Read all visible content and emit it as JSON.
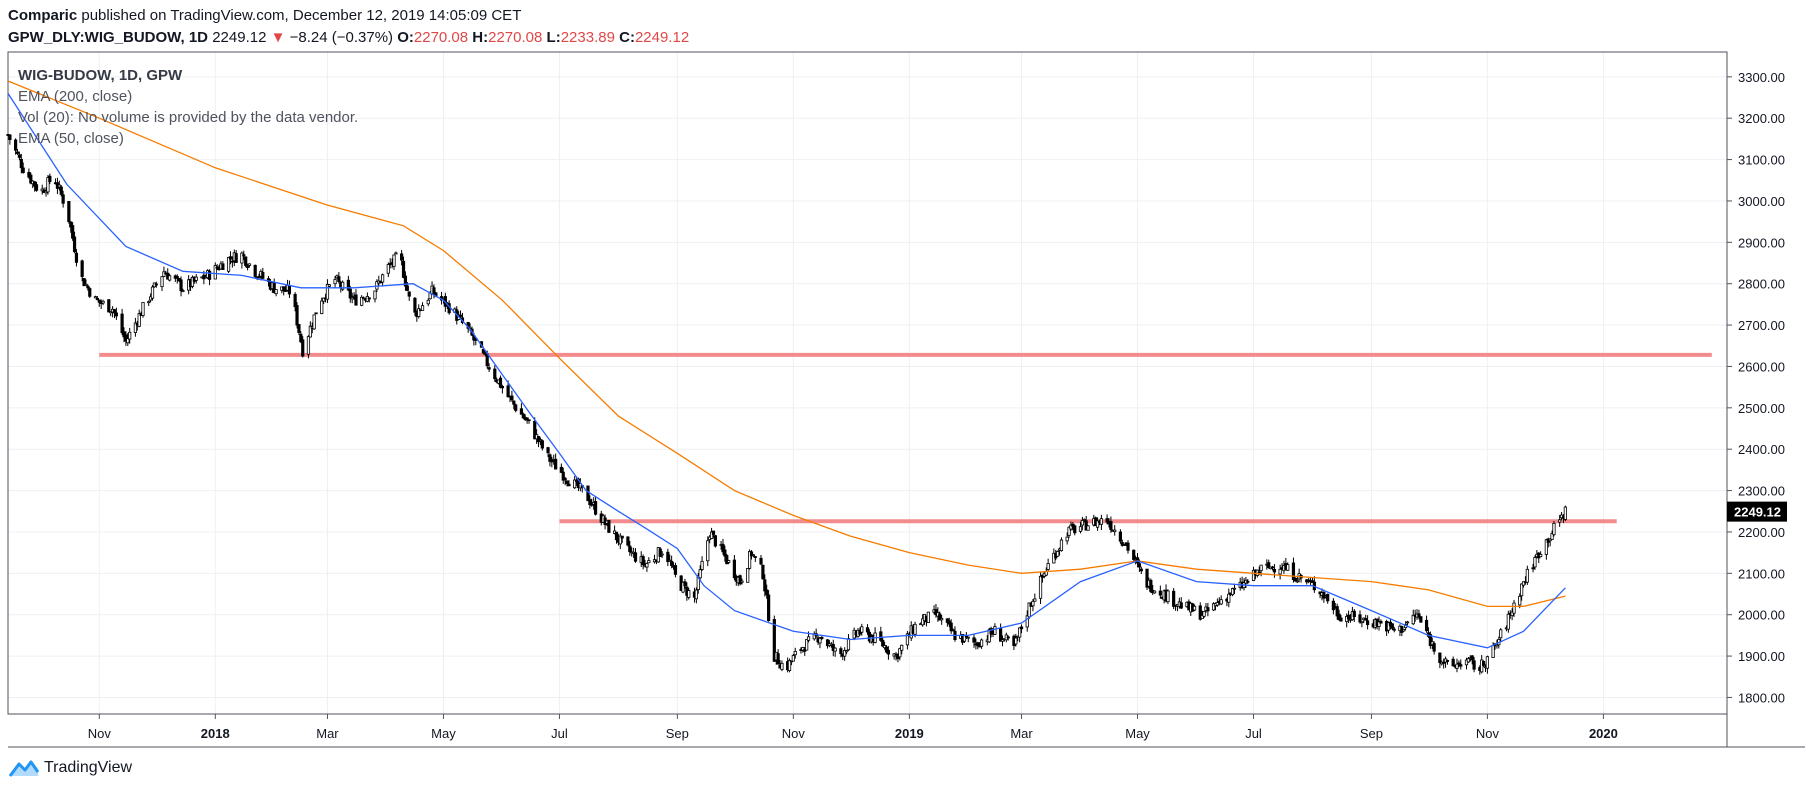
{
  "header": {
    "author": "Comparic",
    "published": "published on TradingView.com, December 12, 2019 14:05:09 CET",
    "symbol": "GPW_DLY:WIG_BUDOW, 1D",
    "last": "2249.12",
    "change_arrow": "▼",
    "change": "−8.24 (−0.37%)",
    "open_label": "O:",
    "open": "2270.08",
    "high_label": "H:",
    "high": "2270.08",
    "low_label": "L:",
    "low": "2233.89",
    "close_label": "C:",
    "close": "2249.12"
  },
  "legend": [
    "WIG-BUDOW, 1D, GPW",
    "EMA (200, close)",
    "Vol (20): No volume is provided by the data vendor.",
    "EMA (50, close)"
  ],
  "brand": {
    "name": "TradingView"
  },
  "colors": {
    "candle": "#000000",
    "ema200": "#f57c00",
    "ema50": "#2962ff",
    "level": "#f28b8b",
    "grid": "#eef0f3",
    "price_tag": "#000000"
  },
  "chart_data": {
    "type": "candlestick",
    "title": "WIG-BUDOW, 1D, GPW",
    "x_range": [
      "2017-09-14",
      "2020-03-06"
    ],
    "ylim": [
      1760,
      3360
    ],
    "y_ticks": [
      "3300.00",
      "3200.00",
      "3100.00",
      "3000.00",
      "2900.00",
      "2800.00",
      "2700.00",
      "2600.00",
      "2500.00",
      "2400.00",
      "2300.00",
      "2200.00",
      "2100.00",
      "2000.00",
      "1900.00",
      "1800.00"
    ],
    "x_ticks": [
      {
        "label": "Nov",
        "date": "2017-11-01"
      },
      {
        "label": "2018",
        "date": "2018-01-01"
      },
      {
        "label": "Mar",
        "date": "2018-03-01"
      },
      {
        "label": "May",
        "date": "2018-05-01"
      },
      {
        "label": "Jul",
        "date": "2018-07-01"
      },
      {
        "label": "Sep",
        "date": "2018-09-01"
      },
      {
        "label": "Nov",
        "date": "2018-11-01"
      },
      {
        "label": "2019",
        "date": "2019-01-01"
      },
      {
        "label": "Mar",
        "date": "2019-03-01"
      },
      {
        "label": "May",
        "date": "2019-05-01"
      },
      {
        "label": "Jul",
        "date": "2019-07-01"
      },
      {
        "label": "Sep",
        "date": "2019-09-01"
      },
      {
        "label": "Nov",
        "date": "2019-11-01"
      },
      {
        "label": "2020",
        "date": "2020-01-01"
      }
    ],
    "price_tag": {
      "label": "2249.12",
      "value": 2249.12
    },
    "levels": [
      {
        "value": 2628,
        "from": "2017-11-01",
        "to": "2020-02-27"
      },
      {
        "value": 2226,
        "from": "2018-07-01",
        "to": "2020-01-08"
      }
    ],
    "price_path": [
      [
        "2017-09-14",
        3160
      ],
      [
        "2017-09-22",
        3080
      ],
      [
        "2017-10-01",
        3020
      ],
      [
        "2017-10-08",
        3060
      ],
      [
        "2017-10-15",
        2980
      ],
      [
        "2017-10-22",
        2820
      ],
      [
        "2017-10-30",
        2760
      ],
      [
        "2017-11-08",
        2740
      ],
      [
        "2017-11-15",
        2660
      ],
      [
        "2017-11-25",
        2750
      ],
      [
        "2017-12-05",
        2830
      ],
      [
        "2017-12-15",
        2790
      ],
      [
        "2017-12-28",
        2820
      ],
      [
        "2018-01-08",
        2860
      ],
      [
        "2018-01-15",
        2870
      ],
      [
        "2018-01-22",
        2830
      ],
      [
        "2018-02-01",
        2790
      ],
      [
        "2018-02-10",
        2780
      ],
      [
        "2018-02-16",
        2640
      ],
      [
        "2018-02-25",
        2760
      ],
      [
        "2018-03-05",
        2810
      ],
      [
        "2018-03-15",
        2760
      ],
      [
        "2018-03-25",
        2780
      ],
      [
        "2018-04-02",
        2840
      ],
      [
        "2018-04-08",
        2870
      ],
      [
        "2018-04-15",
        2720
      ],
      [
        "2018-04-25",
        2780
      ],
      [
        "2018-05-05",
        2740
      ],
      [
        "2018-05-15",
        2680
      ],
      [
        "2018-05-25",
        2600
      ],
      [
        "2018-06-05",
        2520
      ],
      [
        "2018-06-15",
        2460
      ],
      [
        "2018-06-25",
        2380
      ],
      [
        "2018-07-05",
        2330
      ],
      [
        "2018-07-15",
        2290
      ],
      [
        "2018-07-25",
        2220
      ],
      [
        "2018-08-05",
        2160
      ],
      [
        "2018-08-15",
        2120
      ],
      [
        "2018-08-25",
        2160
      ],
      [
        "2018-09-01",
        2080
      ],
      [
        "2018-09-10",
        2040
      ],
      [
        "2018-09-18",
        2200
      ],
      [
        "2018-09-26",
        2140
      ],
      [
        "2018-10-04",
        2080
      ],
      [
        "2018-10-10",
        2150
      ],
      [
        "2018-10-16",
        2100
      ],
      [
        "2018-10-22",
        1900
      ],
      [
        "2018-10-28",
        1870
      ],
      [
        "2018-11-05",
        1920
      ],
      [
        "2018-11-15",
        1950
      ],
      [
        "2018-11-25",
        1900
      ],
      [
        "2018-12-05",
        1960
      ],
      [
        "2018-12-15",
        1940
      ],
      [
        "2018-12-25",
        1900
      ],
      [
        "2019-01-05",
        1980
      ],
      [
        "2019-01-15",
        2000
      ],
      [
        "2019-01-25",
        1950
      ],
      [
        "2019-02-05",
        1930
      ],
      [
        "2019-02-15",
        1960
      ],
      [
        "2019-02-25",
        1920
      ],
      [
        "2019-03-05",
        2020
      ],
      [
        "2019-03-15",
        2120
      ],
      [
        "2019-03-25",
        2200
      ],
      [
        "2019-04-05",
        2220
      ],
      [
        "2019-04-15",
        2230
      ],
      [
        "2019-04-25",
        2170
      ],
      [
        "2019-05-05",
        2080
      ],
      [
        "2019-05-15",
        2050
      ],
      [
        "2019-05-25",
        2020
      ],
      [
        "2019-06-05",
        2000
      ],
      [
        "2019-06-15",
        2040
      ],
      [
        "2019-06-25",
        2070
      ],
      [
        "2019-07-05",
        2110
      ],
      [
        "2019-07-15",
        2120
      ],
      [
        "2019-07-25",
        2090
      ],
      [
        "2019-08-05",
        2060
      ],
      [
        "2019-08-15",
        2000
      ],
      [
        "2019-08-25",
        1990
      ],
      [
        "2019-09-05",
        1980
      ],
      [
        "2019-09-15",
        1960
      ],
      [
        "2019-09-25",
        2000
      ],
      [
        "2019-10-05",
        1910
      ],
      [
        "2019-10-12",
        1870
      ],
      [
        "2019-10-20",
        1890
      ],
      [
        "2019-10-28",
        1870
      ],
      [
        "2019-11-05",
        1920
      ],
      [
        "2019-11-12",
        1990
      ],
      [
        "2019-11-20",
        2080
      ],
      [
        "2019-11-28",
        2150
      ],
      [
        "2019-12-05",
        2200
      ],
      [
        "2019-12-12",
        2250
      ]
    ],
    "series": [
      {
        "name": "EMA (200, close)",
        "points": [
          [
            "2017-09-14",
            3290
          ],
          [
            "2017-11-01",
            3200
          ],
          [
            "2018-01-01",
            3080
          ],
          [
            "2018-03-01",
            2990
          ],
          [
            "2018-04-10",
            2940
          ],
          [
            "2018-05-01",
            2880
          ],
          [
            "2018-06-01",
            2760
          ],
          [
            "2018-07-01",
            2620
          ],
          [
            "2018-08-01",
            2480
          ],
          [
            "2018-09-01",
            2390
          ],
          [
            "2018-10-01",
            2300
          ],
          [
            "2018-11-01",
            2240
          ],
          [
            "2018-12-01",
            2190
          ],
          [
            "2019-01-01",
            2150
          ],
          [
            "2019-02-01",
            2120
          ],
          [
            "2019-03-01",
            2100
          ],
          [
            "2019-04-01",
            2110
          ],
          [
            "2019-05-01",
            2130
          ],
          [
            "2019-06-01",
            2110
          ],
          [
            "2019-07-01",
            2100
          ],
          [
            "2019-08-01",
            2090
          ],
          [
            "2019-09-01",
            2080
          ],
          [
            "2019-10-01",
            2060
          ],
          [
            "2019-11-01",
            2020
          ],
          [
            "2019-11-20",
            2020
          ],
          [
            "2019-12-12",
            2045
          ]
        ]
      },
      {
        "name": "EMA (50, close)",
        "points": [
          [
            "2017-09-14",
            3260
          ],
          [
            "2017-10-15",
            3040
          ],
          [
            "2017-11-15",
            2890
          ],
          [
            "2017-12-15",
            2830
          ],
          [
            "2018-01-15",
            2820
          ],
          [
            "2018-02-15",
            2790
          ],
          [
            "2018-03-15",
            2790
          ],
          [
            "2018-04-15",
            2800
          ],
          [
            "2018-05-01",
            2760
          ],
          [
            "2018-05-15",
            2690
          ],
          [
            "2018-06-01",
            2580
          ],
          [
            "2018-06-15",
            2490
          ],
          [
            "2018-07-01",
            2390
          ],
          [
            "2018-07-15",
            2300
          ],
          [
            "2018-08-01",
            2250
          ],
          [
            "2018-08-15",
            2210
          ],
          [
            "2018-09-01",
            2160
          ],
          [
            "2018-09-15",
            2070
          ],
          [
            "2018-10-01",
            2010
          ],
          [
            "2018-11-01",
            1960
          ],
          [
            "2018-12-01",
            1940
          ],
          [
            "2019-01-01",
            1950
          ],
          [
            "2019-02-01",
            1950
          ],
          [
            "2019-03-01",
            1980
          ],
          [
            "2019-04-01",
            2080
          ],
          [
            "2019-05-01",
            2130
          ],
          [
            "2019-06-01",
            2080
          ],
          [
            "2019-07-01",
            2070
          ],
          [
            "2019-08-01",
            2070
          ],
          [
            "2019-09-01",
            2010
          ],
          [
            "2019-10-01",
            1950
          ],
          [
            "2019-11-01",
            1920
          ],
          [
            "2019-11-20",
            1960
          ],
          [
            "2019-12-12",
            2065
          ]
        ]
      }
    ]
  }
}
